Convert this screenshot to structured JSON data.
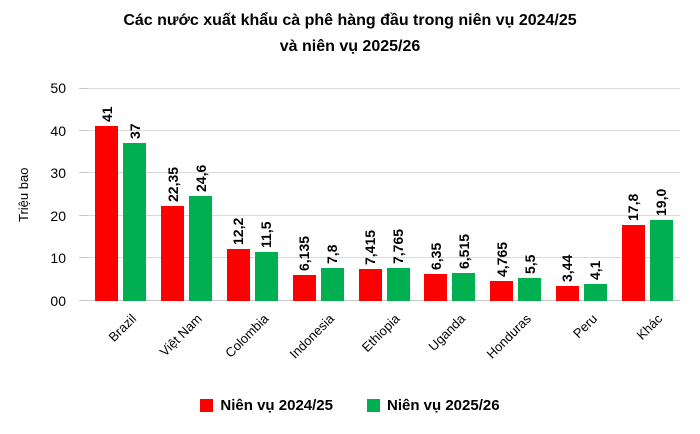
{
  "title": "Các nước xuất khẩu cà phê hàng đầu trong niên vụ 2024/25\nvà niên vụ 2025/26",
  "chart_data": {
    "type": "bar",
    "title": "Các nước xuất khẩu cà phê hàng đầu trong niên vụ 2024/25 và niên vụ 2025/26",
    "xlabel": "",
    "ylabel": "Triệu bao",
    "ylim": [
      0,
      50
    ],
    "yticks": [
      0,
      10,
      20,
      30,
      40,
      50
    ],
    "ytick_labels": [
      "00",
      "10",
      "20",
      "30",
      "40",
      "50"
    ],
    "grid": true,
    "legend_position": "bottom",
    "categories": [
      "Brazil",
      "Việt Nam",
      "Colombia",
      "Indonesia",
      "Ethiopia",
      "Uganda",
      "Honduras",
      "Peru",
      "Khác"
    ],
    "series": [
      {
        "name": "Niên vụ 2024/25",
        "color": "#ff0000",
        "values": [
          41,
          22.35,
          12.2,
          6.135,
          7.415,
          6.35,
          4.765,
          3.44,
          17.8
        ],
        "value_labels": [
          "41",
          "22,35",
          "12,2",
          "6,135",
          "7,415",
          "6,35",
          "4,765",
          "3,44",
          "17,8"
        ]
      },
      {
        "name": "Niên vụ 2025/26",
        "color": "#00b050",
        "values": [
          37,
          24.6,
          11.5,
          7.8,
          7.765,
          6.515,
          5.5,
          4.1,
          19.0
        ],
        "value_labels": [
          "37",
          "24,6",
          "11,5",
          "7,8",
          "7,765",
          "6,515",
          "5,5",
          "4,1",
          "19,0"
        ]
      }
    ]
  }
}
